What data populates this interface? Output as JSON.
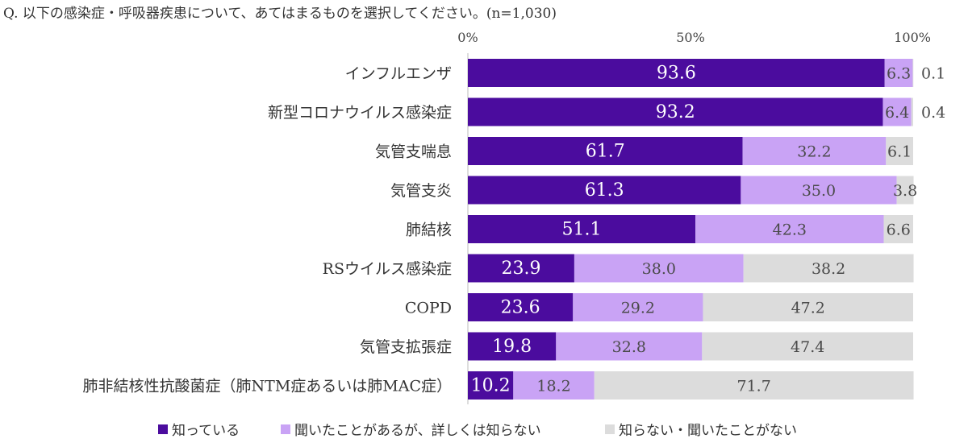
{
  "question": "Q. 以下の感染症・呼吸器疾患について、あてはまるものを選択してください。(n=1,030)",
  "colors": {
    "known": "#4B0C9E",
    "heard": "#C9A3F5",
    "unknown": "#DCDCDC",
    "known_text": "#ffffff",
    "other_text": "#4a4a4a"
  },
  "chart_data": {
    "type": "bar",
    "orientation": "horizontal",
    "stacked": true,
    "xlim": [
      0,
      100
    ],
    "tick_values": [
      0,
      50,
      100
    ],
    "tick_labels": [
      "0%",
      "50%",
      "100%"
    ],
    "categories": [
      "インフルエンザ",
      "新型コロナウイルス感染症",
      "気管支喘息",
      "気管支炎",
      "肺結核",
      "RSウイルス感染症",
      "COPD",
      "気管支拡張症",
      "肺非結核性抗酸菌症（肺NTM症あるいは肺MAC症）"
    ],
    "series": [
      {
        "name": "知っている",
        "values": [
          93.6,
          93.2,
          61.7,
          61.3,
          51.1,
          23.9,
          23.6,
          19.8,
          10.2
        ]
      },
      {
        "name": "聞いたことがあるが、詳しくは知らない",
        "values": [
          6.3,
          6.4,
          32.2,
          35.0,
          42.3,
          38.0,
          29.2,
          32.8,
          18.2
        ]
      },
      {
        "name": "知らない・聞いたことがない",
        "values": [
          0.1,
          0.4,
          6.1,
          3.8,
          6.6,
          38.2,
          47.2,
          47.4,
          71.7
        ]
      }
    ],
    "outside_labels": [
      true,
      true,
      false,
      false,
      false,
      false,
      false,
      false,
      false
    ],
    "legend_position": "bottom",
    "grid": false
  }
}
